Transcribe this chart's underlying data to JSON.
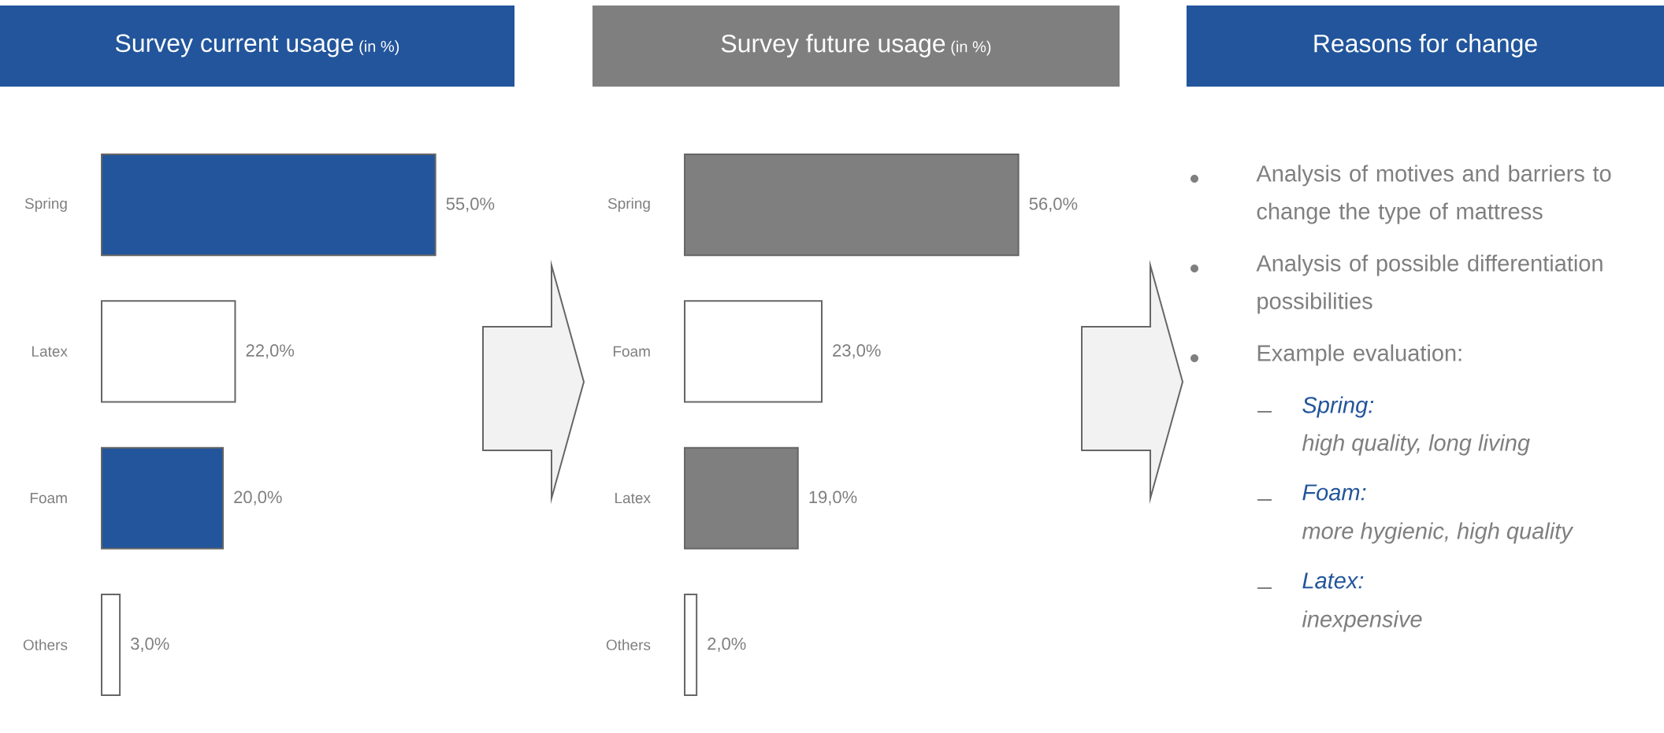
{
  "chart_data": [
    {
      "type": "bar",
      "orientation": "horizontal",
      "title": "Survey current usage",
      "subtitle": "(in %)",
      "categories": [
        "Spring",
        "Latex",
        "Foam",
        "Others"
      ],
      "values": [
        55,
        22,
        20,
        3
      ],
      "colors": [
        "#22559b",
        "#ffffff",
        "#22559b",
        "#ffffff"
      ],
      "value_labels": [
        "55,0%",
        "22,0%",
        "20,0%",
        "3,0%"
      ]
    },
    {
      "type": "bar",
      "orientation": "horizontal",
      "title": "Survey future usage",
      "subtitle": "(in %)",
      "categories": [
        "Spring",
        "Foam",
        "Latex",
        "Others"
      ],
      "values": [
        56,
        23,
        19,
        2
      ],
      "colors": [
        "#7f7f7f",
        "#ffffff",
        "#7f7f7f",
        "#ffffff"
      ],
      "value_labels": [
        "56,0%",
        "23,0%",
        "19,0%",
        "2,0%"
      ]
    },
    {
      "type": "other",
      "title": "Reasons for change",
      "annotations": [
        "Analysis of motives and barriers to change the type of mattress",
        "Analysis of possible differentiation possibilities",
        "Example evaluation:",
        "Spring:",
        "high quality, long living",
        "Foam:",
        "more hygienic, high quality",
        "Latex:",
        "inexpensive"
      ]
    }
  ]
}
